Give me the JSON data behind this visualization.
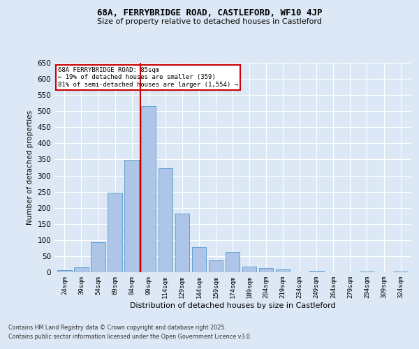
{
  "title": "68A, FERRYBRIDGE ROAD, CASTLEFORD, WF10 4JP",
  "subtitle": "Size of property relative to detached houses in Castleford",
  "xlabel": "Distribution of detached houses by size in Castleford",
  "ylabel": "Number of detached properties",
  "categories": [
    "24sqm",
    "39sqm",
    "54sqm",
    "69sqm",
    "84sqm",
    "99sqm",
    "114sqm",
    "129sqm",
    "144sqm",
    "159sqm",
    "174sqm",
    "189sqm",
    "204sqm",
    "219sqm",
    "234sqm",
    "249sqm",
    "264sqm",
    "279sqm",
    "294sqm",
    "309sqm",
    "324sqm"
  ],
  "values": [
    6,
    15,
    93,
    248,
    348,
    515,
    322,
    183,
    78,
    37,
    62,
    18,
    13,
    8,
    0,
    5,
    0,
    0,
    3,
    0,
    2
  ],
  "bar_color": "#adc6e8",
  "bar_edge_color": "#5599cc",
  "vline_x": 4.5,
  "vline_color": "#cc0000",
  "annotation_title": "68A FERRYBRIDGE ROAD: 85sqm",
  "annotation_line1": "← 19% of detached houses are smaller (359)",
  "annotation_line2": "81% of semi-detached houses are larger (1,554) →",
  "annotation_box_color": "#cc0000",
  "ylim": [
    0,
    650
  ],
  "yticks": [
    0,
    50,
    100,
    150,
    200,
    250,
    300,
    350,
    400,
    450,
    500,
    550,
    600,
    650
  ],
  "footer1": "Contains HM Land Registry data © Crown copyright and database right 2025.",
  "footer2": "Contains public sector information licensed under the Open Government Licence v3.0.",
  "bg_color": "#dce8f5",
  "plot_bg_color": "#dce8f5"
}
